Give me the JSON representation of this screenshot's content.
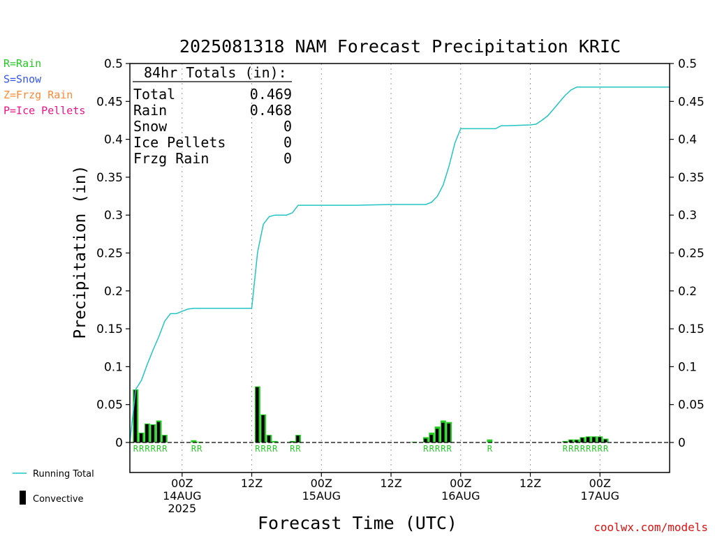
{
  "chart_data": {
    "type": "bar+line",
    "title": "2025081318 NAM Forecast Precipitation KRIC",
    "xlabel": "Forecast Time (UTC)",
    "ylabel": "Precipitation (in)",
    "ylim": [
      0,
      0.5
    ],
    "yticks": [
      "0",
      "0.05",
      "0.1",
      "0.15",
      "0.2",
      "0.25",
      "0.3",
      "0.35",
      "0.4",
      "0.45",
      "0.5"
    ],
    "xlim_hours": [
      -9,
      84
    ],
    "xticks": [
      {
        "hour": 0,
        "lines": [
          "00Z",
          "14AUG",
          "2025"
        ]
      },
      {
        "hour": 12,
        "lines": [
          "12Z"
        ]
      },
      {
        "hour": 24,
        "lines": [
          "00Z",
          "15AUG"
        ]
      },
      {
        "hour": 36,
        "lines": [
          "12Z"
        ]
      },
      {
        "hour": 48,
        "lines": [
          "00Z",
          "16AUG"
        ]
      },
      {
        "hour": 60,
        "lines": [
          "12Z"
        ]
      },
      {
        "hour": 72,
        "lines": [
          "00Z",
          "17AUG"
        ]
      }
    ],
    "grid": "vertical dotted at tick hours",
    "totals_box": {
      "heading": "84hr Totals (in):",
      "rows": [
        {
          "label": "Total",
          "value": "0.469"
        },
        {
          "label": "Rain",
          "value": "0.468"
        },
        {
          "label": "Snow",
          "value": "0"
        },
        {
          "label": "Ice Pellets",
          "value": "0"
        },
        {
          "label": "Frzg Rain",
          "value": "0"
        }
      ]
    },
    "type_key": [
      {
        "text": "R=Rain",
        "color": "#22cc22"
      },
      {
        "text": "S=Snow",
        "color": "#3355ee"
      },
      {
        "text": "Z=Frzg Rain",
        "color": "#ff8833"
      },
      {
        "text": "P=Ice Pellets",
        "color": "#ee1188"
      }
    ],
    "series_legend": [
      {
        "name": "Running Total",
        "color": "#22c4c4",
        "kind": "line"
      },
      {
        "name": "Convective",
        "color": "#000000",
        "kind": "bar"
      }
    ],
    "bars": [
      {
        "hour": -8,
        "total": 0.07,
        "convective": 0.069,
        "type": "R"
      },
      {
        "hour": -7,
        "total": 0.013,
        "convective": 0.012,
        "type": "R"
      },
      {
        "hour": -6,
        "total": 0.025,
        "convective": 0.024,
        "type": "R"
      },
      {
        "hour": -5,
        "total": 0.024,
        "convective": 0.023,
        "type": "R"
      },
      {
        "hour": -4,
        "total": 0.029,
        "convective": 0.027,
        "type": "R"
      },
      {
        "hour": -3,
        "total": 0.01,
        "convective": 0.009,
        "type": "R"
      },
      {
        "hour": 2,
        "total": 0.003,
        "convective": 0.0,
        "type": "R"
      },
      {
        "hour": 3,
        "total": 0.001,
        "convective": 0.0,
        "type": "R"
      },
      {
        "hour": 13,
        "total": 0.074,
        "convective": 0.073,
        "type": "R"
      },
      {
        "hour": 14,
        "total": 0.037,
        "convective": 0.036,
        "type": "R"
      },
      {
        "hour": 15,
        "total": 0.01,
        "convective": 0.009,
        "type": "R"
      },
      {
        "hour": 16,
        "total": 0.002,
        "convective": 0.0,
        "type": "R"
      },
      {
        "hour": 19,
        "total": 0.002,
        "convective": 0.001,
        "type": "R"
      },
      {
        "hour": 20,
        "total": 0.01,
        "convective": 0.009,
        "type": "R"
      },
      {
        "hour": 40,
        "total": 0.001,
        "convective": 0.0,
        "type": ""
      },
      {
        "hour": 42,
        "total": 0.007,
        "convective": 0.005,
        "type": "R"
      },
      {
        "hour": 43,
        "total": 0.013,
        "convective": 0.01,
        "type": "R"
      },
      {
        "hour": 44,
        "total": 0.021,
        "convective": 0.018,
        "type": "R"
      },
      {
        "hour": 45,
        "total": 0.029,
        "convective": 0.026,
        "type": "R"
      },
      {
        "hour": 46,
        "total": 0.027,
        "convective": 0.025,
        "type": "R"
      },
      {
        "hour": 53,
        "total": 0.004,
        "convective": 0.0,
        "type": "R"
      },
      {
        "hour": 66,
        "total": 0.002,
        "convective": 0.001,
        "type": "R"
      },
      {
        "hour": 67,
        "total": 0.004,
        "convective": 0.003,
        "type": "R"
      },
      {
        "hour": 68,
        "total": 0.004,
        "convective": 0.003,
        "type": "R"
      },
      {
        "hour": 69,
        "total": 0.007,
        "convective": 0.006,
        "type": "R"
      },
      {
        "hour": 70,
        "total": 0.008,
        "convective": 0.007,
        "type": "R"
      },
      {
        "hour": 71,
        "total": 0.008,
        "convective": 0.007,
        "type": "R"
      },
      {
        "hour": 72,
        "total": 0.008,
        "convective": 0.007,
        "type": "R"
      },
      {
        "hour": 73,
        "total": 0.005,
        "convective": 0.004,
        "type": "R"
      }
    ],
    "running_total": {
      "x": [
        -9,
        -8,
        -7,
        -6,
        -5,
        -4,
        -3,
        -2,
        -1,
        0,
        1,
        2,
        3,
        4,
        5,
        6,
        7,
        8,
        9,
        10,
        11,
        12,
        13,
        14,
        15,
        16,
        17,
        18,
        19,
        20,
        21,
        22,
        23,
        24,
        30,
        36,
        42,
        43,
        44,
        45,
        46,
        47,
        48,
        54,
        55,
        56,
        60,
        61,
        62,
        63,
        64,
        65,
        66,
        67,
        68,
        69,
        70,
        71,
        72,
        73,
        84
      ],
      "y": [
        0.0,
        0.07,
        0.082,
        0.103,
        0.122,
        0.14,
        0.16,
        0.17,
        0.17,
        0.173,
        0.176,
        0.177,
        0.177,
        0.177,
        0.177,
        0.177,
        0.177,
        0.177,
        0.177,
        0.177,
        0.177,
        0.177,
        0.251,
        0.288,
        0.298,
        0.3,
        0.3,
        0.3,
        0.303,
        0.313,
        0.313,
        0.313,
        0.313,
        0.313,
        0.313,
        0.314,
        0.314,
        0.317,
        0.325,
        0.34,
        0.365,
        0.395,
        0.414,
        0.414,
        0.418,
        0.418,
        0.419,
        0.42,
        0.425,
        0.431,
        0.44,
        0.449,
        0.458,
        0.465,
        0.469,
        0.469,
        0.469,
        0.469,
        0.469,
        0.469,
        0.469
      ]
    },
    "watermark": "coolwx.com/models"
  }
}
